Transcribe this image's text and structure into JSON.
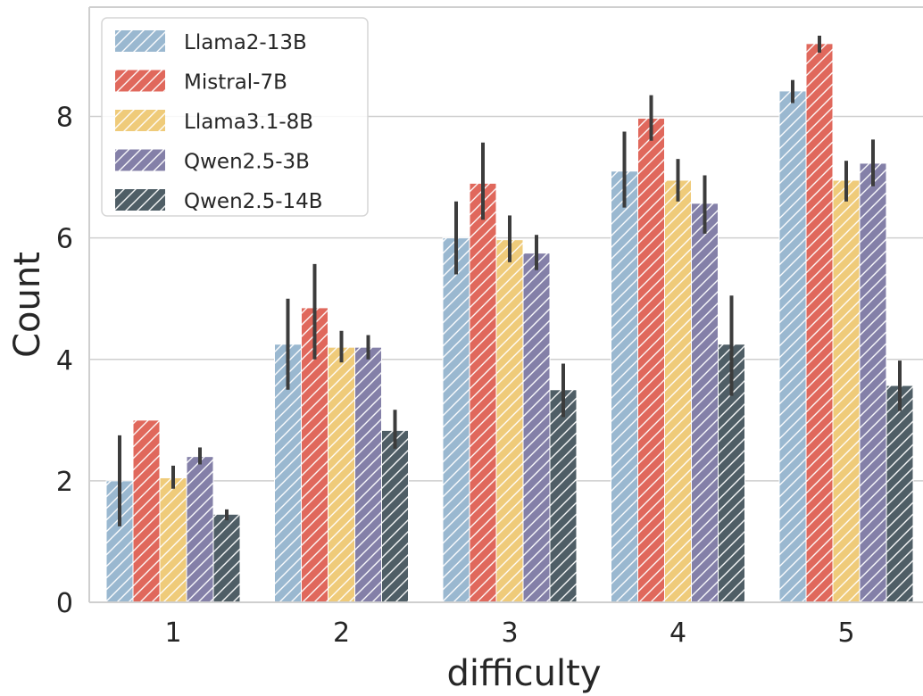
{
  "chart_data": {
    "type": "bar",
    "xlabel": "difficulty",
    "ylabel": "Count",
    "categories": [
      "1",
      "2",
      "3",
      "4",
      "5"
    ],
    "ylim": [
      0,
      9.8
    ],
    "yticks": [
      0,
      2,
      4,
      6,
      8
    ],
    "grid": true,
    "legend_position": "top-left",
    "series": [
      {
        "name": "Llama2-13B",
        "color": "#9ab8d0",
        "values": [
          2.0,
          4.25,
          6.0,
          7.1,
          8.42
        ],
        "err_low": [
          1.25,
          3.5,
          5.4,
          6.5,
          8.22
        ],
        "err_high": [
          2.75,
          5.0,
          6.6,
          7.75,
          8.6
        ]
      },
      {
        "name": "Mistral-7B",
        "color": "#e0685c",
        "values": [
          3.0,
          4.85,
          6.9,
          7.97,
          9.2
        ],
        "err_low": [
          3.0,
          4.0,
          6.3,
          7.6,
          9.05
        ],
        "err_high": [
          3.0,
          5.57,
          7.57,
          8.35,
          9.33
        ]
      },
      {
        "name": "Llama3.1-8B",
        "color": "#efcb7a",
        "values": [
          2.05,
          4.2,
          5.97,
          6.95,
          6.95
        ],
        "err_low": [
          1.87,
          3.95,
          5.6,
          6.6,
          6.6
        ],
        "err_high": [
          2.25,
          4.47,
          6.37,
          7.3,
          7.27
        ]
      },
      {
        "name": "Qwen2.5-3B",
        "color": "#8480a8",
        "values": [
          2.4,
          4.2,
          5.75,
          6.57,
          7.23
        ],
        "err_low": [
          2.27,
          4.0,
          5.47,
          6.07,
          6.85
        ],
        "err_high": [
          2.55,
          4.4,
          6.05,
          7.03,
          7.62
        ]
      },
      {
        "name": "Qwen2.5-14B",
        "color": "#4f5e66",
        "values": [
          1.45,
          2.83,
          3.5,
          4.25,
          3.57
        ],
        "err_low": [
          1.35,
          2.53,
          3.05,
          3.4,
          3.15
        ],
        "err_high": [
          1.53,
          3.17,
          3.93,
          5.05,
          3.98
        ]
      }
    ]
  }
}
